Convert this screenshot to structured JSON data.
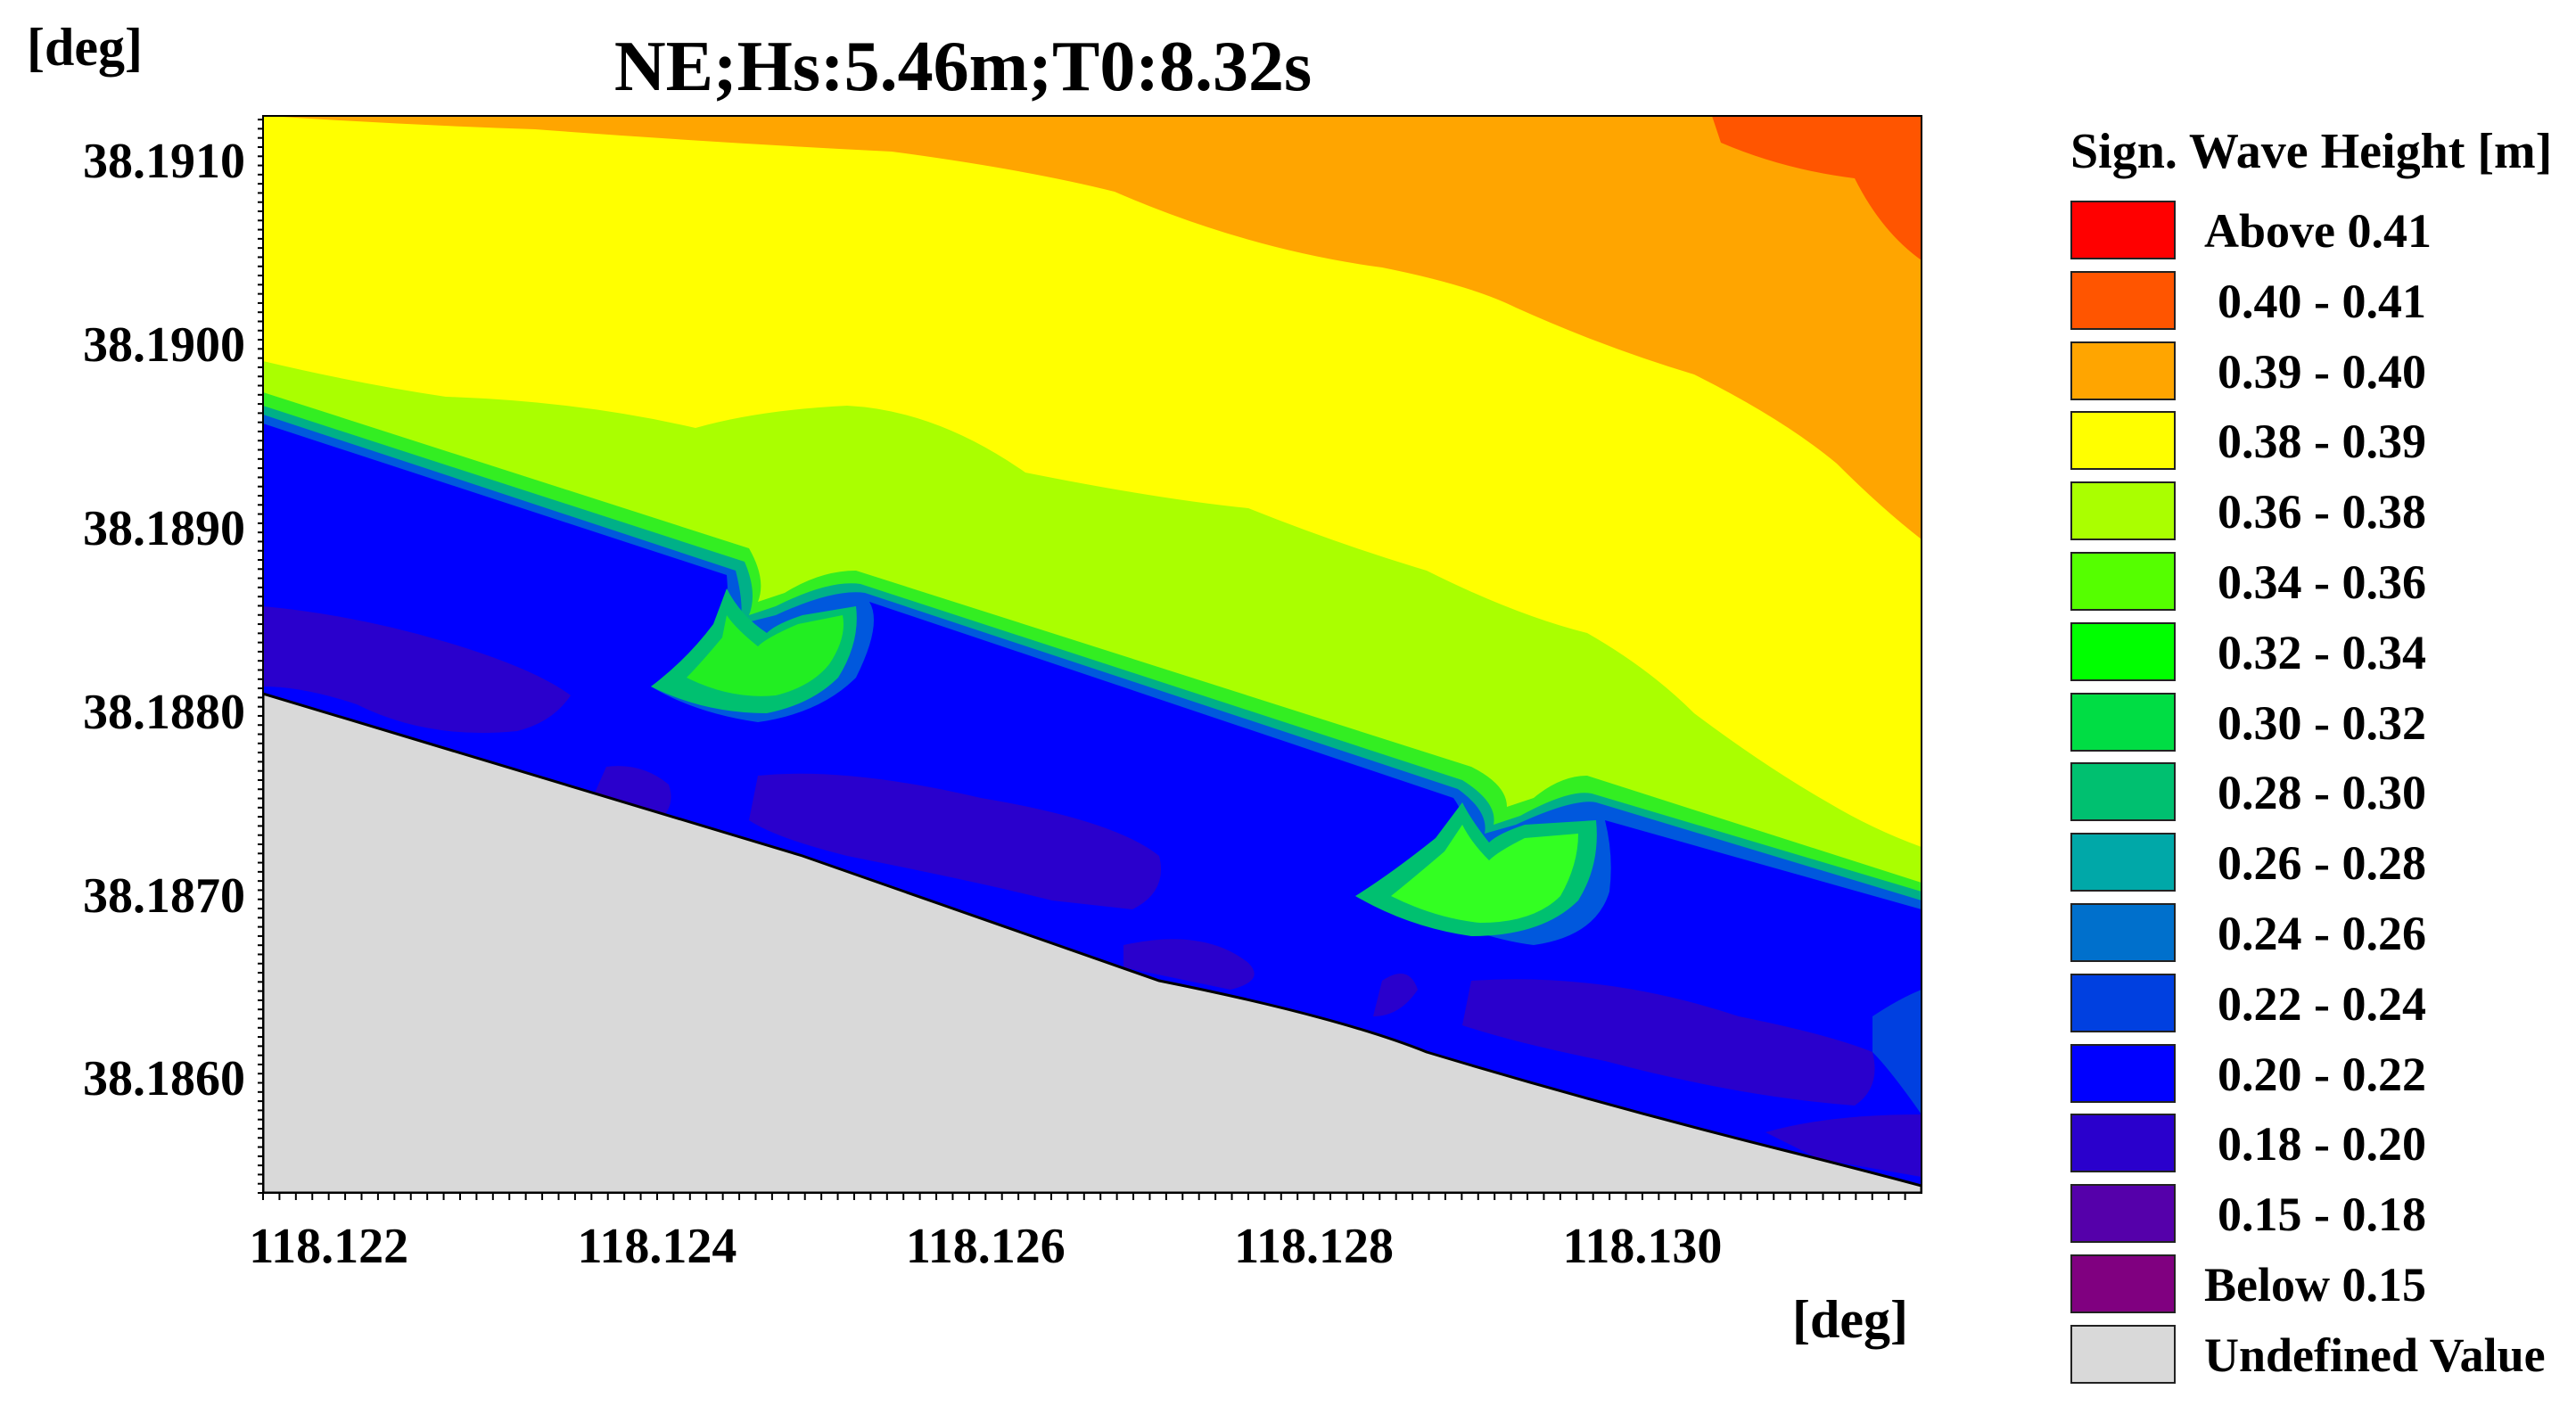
{
  "chart_data": {
    "type": "heatmap",
    "title": "NE;Hs:5.46m;T0:8.32s",
    "y_unit": "[deg]",
    "x_unit": "[deg]",
    "xlim": [
      118.1216,
      118.1317
    ],
    "ylim": [
      38.18538,
      38.19125
    ],
    "x_ticks": [
      "118.122",
      "118.124",
      "118.126",
      "118.128",
      "118.130"
    ],
    "x_tick_values": [
      118.122,
      118.124,
      118.126,
      118.128,
      118.13
    ],
    "y_ticks": [
      "38.1910",
      "38.1900",
      "38.1890",
      "38.1880",
      "38.1870",
      "38.1860"
    ],
    "y_tick_values": [
      38.191,
      38.19,
      38.189,
      38.188,
      38.187,
      38.186
    ],
    "legend_title": "Sign. Wave Height [m]",
    "legend": [
      {
        "label": "Above 0.41",
        "color": "#ff0000"
      },
      {
        "label": "0.40 - 0.41",
        "color": "#ff5500"
      },
      {
        "label": "0.39 - 0.40",
        "color": "#ffa500"
      },
      {
        "label": "0.38 - 0.39",
        "color": "#ffff00"
      },
      {
        "label": "0.36 - 0.38",
        "color": "#aaff00"
      },
      {
        "label": "0.34 - 0.36",
        "color": "#55ff00"
      },
      {
        "label": "0.32 - 0.34",
        "color": "#00ff00"
      },
      {
        "label": "0.30 - 0.32",
        "color": "#00dd44"
      },
      {
        "label": "0.28 - 0.30",
        "color": "#00c070"
      },
      {
        "label": "0.26 - 0.28",
        "color": "#00a8a8"
      },
      {
        "label": "0.24 - 0.26",
        "color": "#0070cc"
      },
      {
        "label": "0.22 - 0.24",
        "color": "#0040e0"
      },
      {
        "label": "0.20 - 0.22",
        "color": "#0000ff"
      },
      {
        "label": "0.18 - 0.20",
        "color": "#2a00cc"
      },
      {
        "label": "0.15 - 0.18",
        "color": "#5500aa"
      },
      {
        "label": "Below 0.15",
        "color": "#800080"
      },
      {
        "label": "Undefined Value",
        "color": "#d9d9d9"
      }
    ]
  }
}
